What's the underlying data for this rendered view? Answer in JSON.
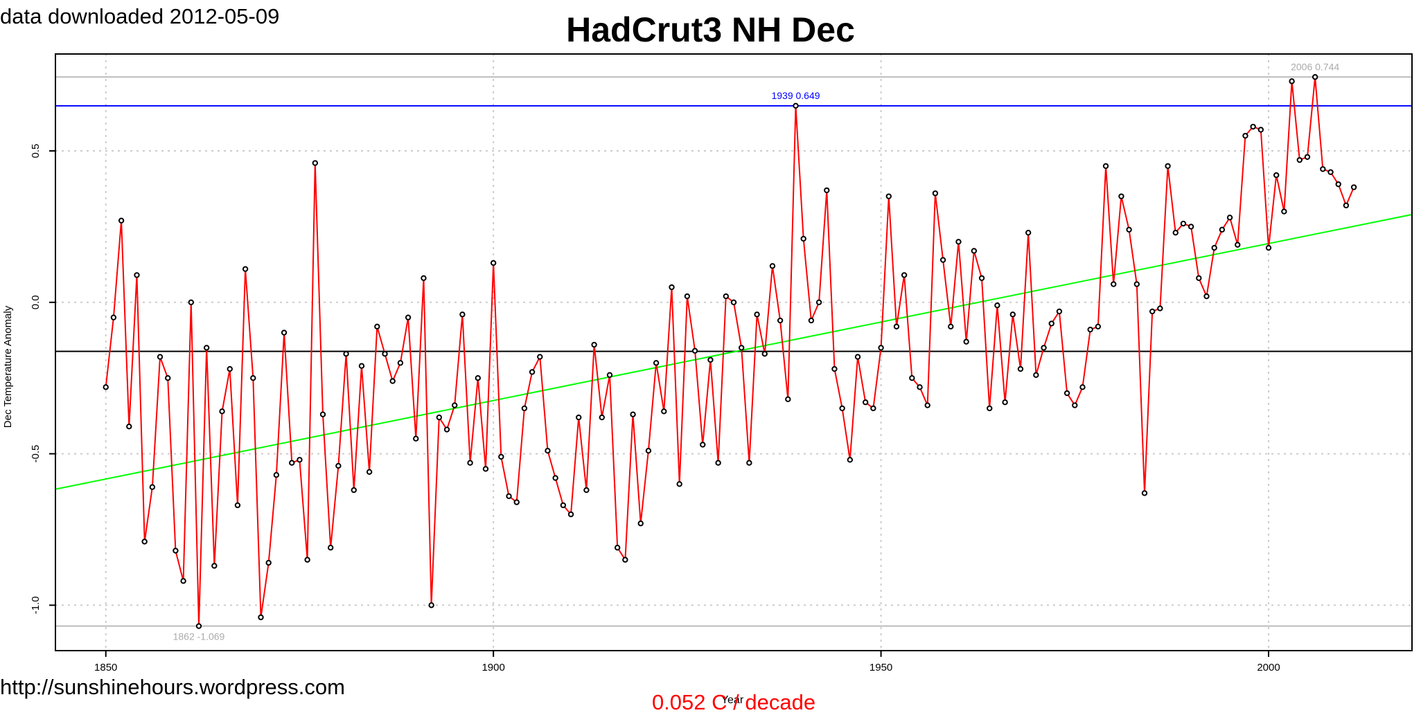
{
  "header": {
    "note": "data downloaded 2012-05-09",
    "footer_url": "http://sunshinehours.wordpress.com",
    "trend_text": "0.052 C / decade"
  },
  "chart_data": {
    "type": "line",
    "title": "HadCrut3 NH Dec",
    "xlabel": "Year",
    "ylabel": "Dec Temperature Anomaly",
    "xlim": [
      1843.5,
      2018.5
    ],
    "ylim": [
      -1.15,
      0.82
    ],
    "xticks": [
      1850,
      1900,
      1950,
      2000
    ],
    "yticks": [
      -1.0,
      -0.5,
      0.0,
      0.5
    ],
    "ytick_labels": [
      "-1.0",
      "-0.5",
      "0.0",
      "0.5"
    ],
    "grid": true,
    "x": [
      1850,
      1851,
      1852,
      1853,
      1854,
      1855,
      1856,
      1857,
      1858,
      1859,
      1860,
      1861,
      1862,
      1863,
      1864,
      1865,
      1866,
      1867,
      1868,
      1869,
      1870,
      1871,
      1872,
      1873,
      1874,
      1875,
      1876,
      1877,
      1878,
      1879,
      1880,
      1881,
      1882,
      1883,
      1884,
      1885,
      1886,
      1887,
      1888,
      1889,
      1890,
      1891,
      1892,
      1893,
      1894,
      1895,
      1896,
      1897,
      1898,
      1899,
      1900,
      1901,
      1902,
      1903,
      1904,
      1905,
      1906,
      1907,
      1908,
      1909,
      1910,
      1911,
      1912,
      1913,
      1914,
      1915,
      1916,
      1917,
      1918,
      1919,
      1920,
      1921,
      1922,
      1923,
      1924,
      1925,
      1926,
      1927,
      1928,
      1929,
      1930,
      1931,
      1932,
      1933,
      1934,
      1935,
      1936,
      1937,
      1938,
      1939,
      1940,
      1941,
      1942,
      1943,
      1944,
      1945,
      1946,
      1947,
      1948,
      1949,
      1950,
      1951,
      1952,
      1953,
      1954,
      1955,
      1956,
      1957,
      1958,
      1959,
      1960,
      1961,
      1962,
      1963,
      1964,
      1965,
      1966,
      1967,
      1968,
      1969,
      1970,
      1971,
      1972,
      1973,
      1974,
      1975,
      1976,
      1977,
      1978,
      1979,
      1980,
      1981,
      1982,
      1983,
      1984,
      1985,
      1986,
      1987,
      1988,
      1989,
      1990,
      1991,
      1992,
      1993,
      1994,
      1995,
      1996,
      1997,
      1998,
      1999,
      2000,
      2001,
      2002,
      2003,
      2004,
      2005,
      2006,
      2007,
      2008,
      2009,
      2010,
      2011
    ],
    "series": [
      {
        "color": "#ff0000",
        "values": [
          -0.28,
          -0.05,
          0.27,
          -0.41,
          0.09,
          -0.79,
          -0.61,
          -0.18,
          -0.25,
          -0.82,
          -0.92,
          0.0,
          -1.069,
          -0.15,
          -0.87,
          -0.36,
          -0.22,
          -0.67,
          0.11,
          -0.25,
          -1.04,
          -0.86,
          -0.57,
          -0.1,
          -0.53,
          -0.52,
          -0.85,
          0.46,
          -0.37,
          -0.81,
          -0.54,
          -0.17,
          -0.62,
          -0.21,
          -0.56,
          -0.08,
          -0.17,
          -0.26,
          -0.2,
          -0.05,
          -0.45,
          0.08,
          -1.0,
          -0.38,
          -0.42,
          -0.34,
          -0.04,
          -0.53,
          -0.25,
          -0.55,
          0.13,
          -0.51,
          -0.64,
          -0.66,
          -0.35,
          -0.23,
          -0.18,
          -0.49,
          -0.58,
          -0.67,
          -0.7,
          -0.38,
          -0.62,
          -0.14,
          -0.38,
          -0.24,
          -0.81,
          -0.85,
          -0.37,
          -0.73,
          -0.49,
          -0.2,
          -0.36,
          0.05,
          -0.6,
          0.02,
          -0.16,
          -0.47,
          -0.19,
          -0.53,
          0.02,
          0.0,
          -0.15,
          -0.53,
          -0.04,
          -0.17,
          0.12,
          -0.06,
          -0.32,
          0.649,
          0.21,
          -0.06,
          0.0,
          0.37,
          -0.22,
          -0.35,
          -0.52,
          -0.18,
          -0.33,
          -0.35,
          -0.15,
          0.35,
          -0.08,
          0.09,
          -0.25,
          -0.28,
          -0.34,
          0.36,
          0.14,
          -0.08,
          0.2,
          -0.13,
          0.17,
          0.08,
          -0.35,
          -0.01,
          -0.33,
          -0.04,
          -0.22,
          0.23,
          -0.24,
          -0.15,
          -0.07,
          -0.03,
          -0.3,
          -0.34,
          -0.28,
          -0.09,
          -0.08,
          0.45,
          0.06,
          0.35,
          0.24,
          0.06,
          -0.63,
          -0.03,
          -0.02,
          0.45,
          0.23,
          0.26,
          0.25,
          0.08,
          0.02,
          0.18,
          0.24,
          0.28,
          0.19,
          0.55,
          0.58,
          0.57,
          0.18,
          0.42,
          0.3,
          0.73,
          0.47,
          0.48,
          0.744,
          0.44,
          0.43,
          0.39,
          0.32,
          0.38
        ]
      }
    ],
    "trend_line": {
      "color": "#00ff00",
      "x": [
        1843.5,
        2018.5
      ],
      "y": [
        -0.617,
        0.29
      ]
    },
    "mean_line": {
      "color": "#000000",
      "y": -0.162
    },
    "reference_lines": [
      {
        "color": "#bbbbbb",
        "y": 0.744
      },
      {
        "color": "#0000ff",
        "y": 0.649
      },
      {
        "color": "#bbbbbb",
        "y": -1.069
      }
    ],
    "annotations": [
      {
        "text": "2006 0.744",
        "x": 2006,
        "y": 0.744,
        "color": "#aaaaaa"
      },
      {
        "text": "1939 0.649",
        "x": 1939,
        "y": 0.649,
        "color": "#0000ff"
      },
      {
        "text": "1862 -1.069",
        "x": 1862,
        "y": -1.069,
        "color": "#aaaaaa"
      }
    ]
  }
}
